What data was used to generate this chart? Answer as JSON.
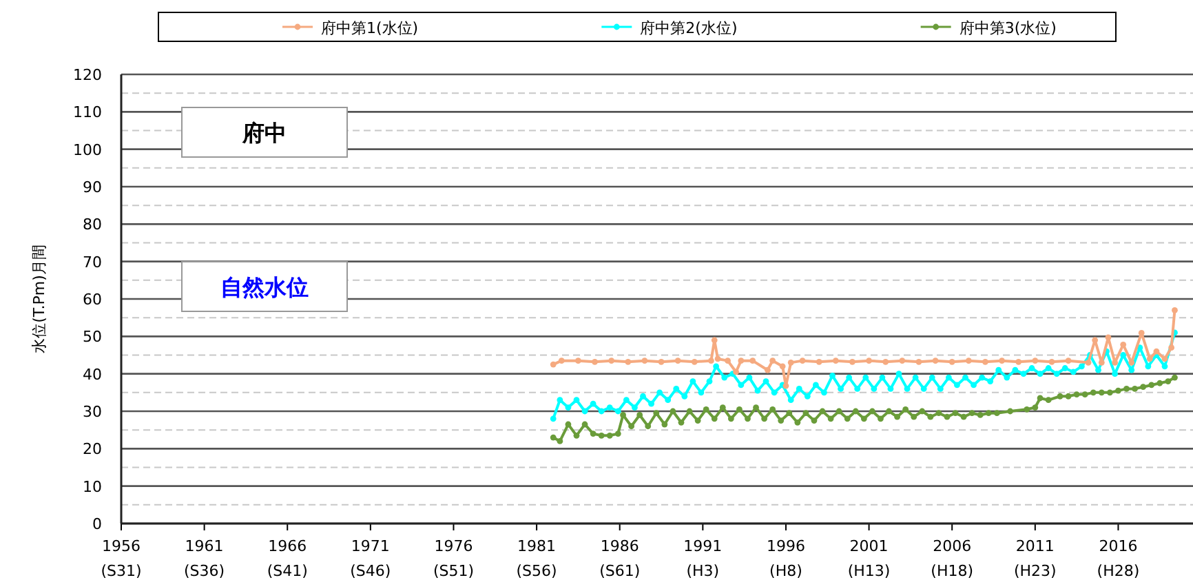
{
  "chart_data": {
    "type": "line",
    "ylabel": "水位(T.Pm)月間",
    "legend": "top",
    "marker": "circle",
    "grid": "y",
    "annotations": [
      "府中",
      "自然水位",
      "(S31)",
      "(S36)",
      "(S41)",
      "(S46)",
      "(S51)",
      "(S56)",
      "(S61)",
      "(H3)",
      "(H8)",
      "(H13)",
      "(H18)",
      "(H23)",
      "(H28)"
    ],
    "xlim": [
      1956,
      2020.5
    ],
    "xticks": [
      1956,
      1961,
      1966,
      1971,
      1976,
      1981,
      1986,
      1991,
      1996,
      2001,
      2006,
      2011,
      2016
    ],
    "ylim": [
      0,
      120
    ],
    "yticks": [
      0,
      {
        "value": 5,
        "label": null
      },
      10,
      {
        "value": 15,
        "label": null
      },
      20,
      {
        "value": 25,
        "label": null
      },
      30,
      {
        "value": 35,
        "label": null
      },
      40,
      {
        "value": 45,
        "label": null
      },
      50,
      {
        "value": 55,
        "label": null
      },
      60,
      {
        "value": 65,
        "label": null
      },
      70,
      {
        "value": 75,
        "label": null
      },
      80,
      {
        "value": 85,
        "label": null
      },
      90,
      {
        "value": 95,
        "label": null
      },
      100,
      {
        "value": 105,
        "label": null
      },
      110,
      {
        "value": 115,
        "label": null
      },
      120
    ],
    "series": [
      {
        "name": "府中第1(水位)",
        "color": "#f5aa80",
        "x": [
          1982.0,
          1982.5,
          1983.5,
          1984.5,
          1985.5,
          1986.5,
          1987.5,
          1988.5,
          1989.5,
          1990.5,
          1991.5,
          1991.7,
          1991.9,
          1992.5,
          1993.0,
          1993.3,
          1994.0,
          1994.9,
          1995.2,
          1995.8,
          1996.0,
          1996.3,
          1997.0,
          1998.0,
          1999.0,
          2000.0,
          2001.0,
          2002.0,
          2003.0,
          2004.0,
          2005.0,
          2006.0,
          2007.0,
          2008.0,
          2009.0,
          2010.0,
          2011.0,
          2012.0,
          2013.0,
          2014.2,
          2014.6,
          2015.0,
          2015.4,
          2015.8,
          2016.3,
          2016.8,
          2017.4,
          2017.9,
          2018.3,
          2018.8,
          2019.2,
          2019.4
        ],
        "values": [
          42.5,
          43.5,
          43.5,
          43.2,
          43.5,
          43.2,
          43.5,
          43.2,
          43.5,
          43.2,
          43.5,
          49,
          44,
          43.5,
          40.5,
          43.5,
          43.5,
          41,
          43.5,
          42,
          36.8,
          43,
          43.5,
          43.2,
          43.5,
          43.2,
          43.5,
          43.2,
          43.5,
          43.2,
          43.5,
          43.2,
          43.5,
          43.2,
          43.5,
          43.2,
          43.5,
          43.2,
          43.5,
          43,
          49,
          43,
          49.7,
          43,
          47.8,
          43,
          50.9,
          44,
          46,
          44,
          47,
          57
        ]
      },
      {
        "name": "府中第2(水位)",
        "color": "#00ffff",
        "x": [
          1982.0,
          1982.4,
          1982.9,
          1983.4,
          1983.9,
          1984.4,
          1984.9,
          1985.4,
          1985.9,
          1986.4,
          1986.9,
          1987.4,
          1987.9,
          1988.4,
          1988.9,
          1989.4,
          1989.9,
          1990.4,
          1990.9,
          1991.4,
          1991.8,
          1992.3,
          1992.8,
          1993.3,
          1993.8,
          1994.3,
          1994.8,
          1995.3,
          1995.8,
          1996.3,
          1996.8,
          1997.3,
          1997.8,
          1998.3,
          1998.8,
          1999.3,
          1999.8,
          2000.3,
          2000.8,
          2001.3,
          2001.8,
          2002.3,
          2002.8,
          2003.3,
          2003.8,
          2004.3,
          2004.8,
          2005.3,
          2005.8,
          2006.3,
          2006.8,
          2007.3,
          2007.8,
          2008.3,
          2008.8,
          2009.3,
          2009.8,
          2010.3,
          2010.8,
          2011.3,
          2011.8,
          2012.3,
          2012.8,
          2013.3,
          2013.8,
          2014.3,
          2014.8,
          2015.3,
          2015.8,
          2016.3,
          2016.8,
          2017.3,
          2017.8,
          2018.3,
          2018.8,
          2019.4
        ],
        "values": [
          28,
          33,
          31,
          33,
          30,
          32,
          30,
          31,
          30,
          33,
          31,
          34,
          32,
          35,
          33,
          36,
          34,
          38,
          35,
          38,
          42,
          39,
          40,
          37,
          39,
          35.5,
          38,
          35,
          37,
          33,
          36,
          34,
          37,
          35,
          39.5,
          36,
          39,
          36,
          39,
          36,
          39,
          36,
          40,
          36,
          39,
          36,
          39,
          36,
          39,
          37,
          39,
          37,
          39,
          38,
          41,
          39,
          41,
          40,
          41.5,
          40,
          41.5,
          40,
          41.5,
          40.5,
          42,
          45,
          41,
          46,
          40,
          45,
          41,
          47,
          42,
          45,
          42,
          51
        ]
      },
      {
        "name": "府中第3(水位)",
        "color": "#6a9c3a",
        "x": [
          1982.0,
          1982.4,
          1982.9,
          1983.4,
          1983.9,
          1984.4,
          1984.9,
          1985.4,
          1985.9,
          1986.2,
          1986.7,
          1987.2,
          1987.7,
          1988.2,
          1988.7,
          1989.2,
          1989.7,
          1990.2,
          1990.7,
          1991.2,
          1991.7,
          1992.2,
          1992.7,
          1993.2,
          1993.7,
          1994.2,
          1994.7,
          1995.2,
          1995.7,
          1996.2,
          1996.7,
          1997.2,
          1997.7,
          1998.2,
          1998.7,
          1999.2,
          1999.7,
          2000.2,
          2000.7,
          2001.2,
          2001.7,
          2002.2,
          2002.7,
          2003.2,
          2003.7,
          2004.2,
          2004.7,
          2005.2,
          2005.7,
          2006.2,
          2006.7,
          2007.2,
          2007.7,
          2008.2,
          2008.7,
          2009.5,
          2010.5,
          2011.0,
          2011.3,
          2011.8,
          2012.5,
          2013.0,
          2013.5,
          2014.0,
          2014.5,
          2015.0,
          2015.5,
          2016.0,
          2016.5,
          2017.0,
          2017.5,
          2018.0,
          2018.5,
          2019.0,
          2019.4
        ],
        "values": [
          23,
          22,
          26.5,
          23.5,
          26.5,
          24,
          23.5,
          23.5,
          24,
          29,
          26,
          29,
          26,
          29.5,
          26.5,
          30,
          27,
          30,
          27.5,
          30.5,
          28,
          31,
          28,
          30.5,
          28,
          31,
          28,
          30.5,
          27.5,
          29.5,
          27,
          29.5,
          27.5,
          30,
          28,
          30,
          28,
          30,
          28,
          30,
          28,
          30,
          28.5,
          30.5,
          28.5,
          30,
          28.5,
          29.5,
          28.5,
          29.5,
          28.5,
          29.5,
          29,
          29.5,
          29.5,
          30,
          30.5,
          31,
          33.5,
          33,
          34,
          34,
          34.5,
          34.5,
          35,
          35,
          35,
          35.5,
          36,
          36,
          36.5,
          37,
          37.5,
          38,
          39
        ]
      }
    ]
  }
}
